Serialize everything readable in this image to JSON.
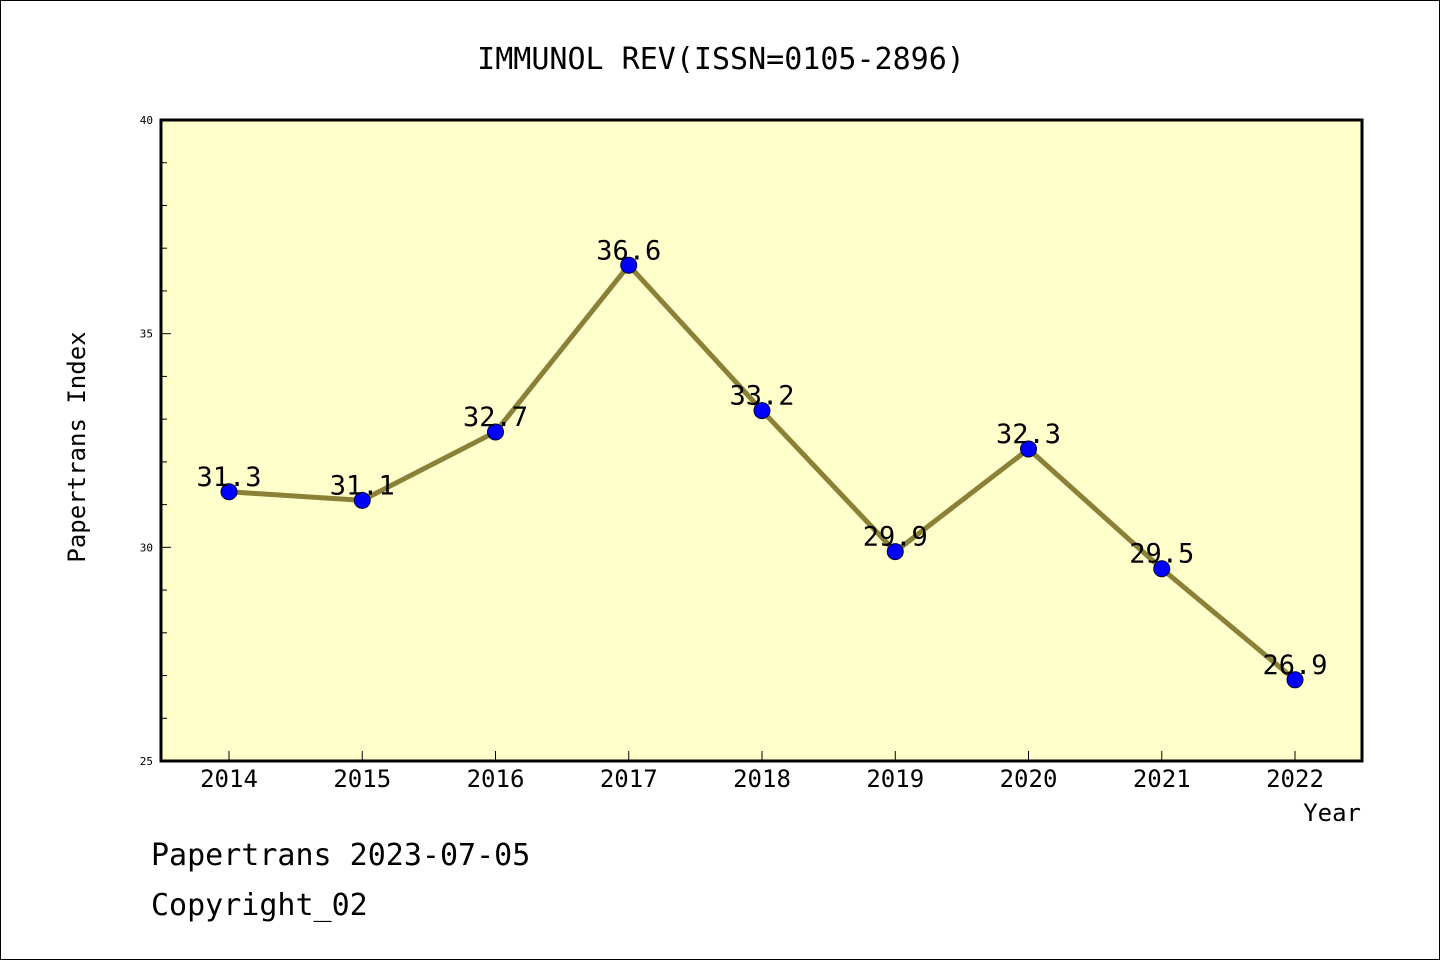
{
  "chart_data": {
    "type": "line",
    "title": "IMMUNOL REV(ISSN=0105-2896)",
    "xlabel": "Year",
    "ylabel": "Papertrans Index",
    "x": [
      "2014",
      "2015",
      "2016",
      "2017",
      "2018",
      "2019",
      "2020",
      "2021",
      "2022"
    ],
    "values": [
      31.3,
      31.1,
      32.7,
      36.6,
      33.2,
      29.9,
      32.3,
      29.5,
      26.9
    ],
    "data_labels": [
      "31.3",
      "31.1",
      "32.7",
      "36.6",
      "33.2",
      "29.9",
      "32.3",
      "29.5",
      "26.9"
    ],
    "ylim": [
      25,
      40
    ],
    "yticks_major": [
      25,
      30,
      35,
      40
    ],
    "ytick_labels": [
      "25",
      "30",
      "35",
      "40"
    ],
    "yminor_step": 1,
    "grid": false,
    "colors": {
      "plot_background": "#ffffcc",
      "line": "#8b8038",
      "marker": "#0000ff"
    }
  },
  "footer": {
    "date_line": "Papertrans 2023-07-05",
    "copyright": "Copyright_02"
  }
}
